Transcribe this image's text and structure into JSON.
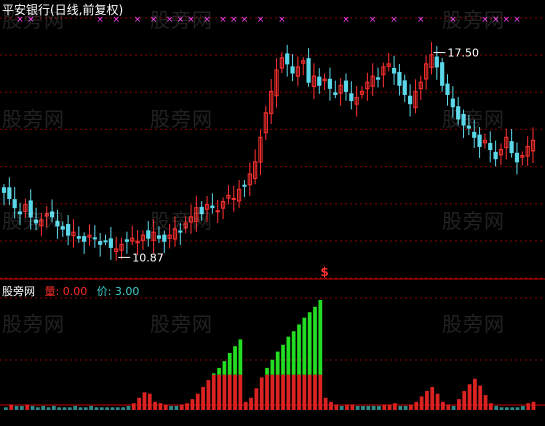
{
  "header": {
    "title": "平安银行(日线,前复权)"
  },
  "sub_panel": {
    "name": "股旁网",
    "vol_label": "量: 0.00",
    "price_label": "价: 3.00"
  },
  "watermark": "股旁网",
  "colors": {
    "background": "#000000",
    "up": "#ff3030",
    "down": "#5ad7e8",
    "grid": "#8b0000",
    "green": "#22dd22",
    "red": "#dd2222",
    "teal": "#2a8c8c",
    "marker": "#ff44ff"
  },
  "chart_data": [
    {
      "type": "candlestick",
      "annotations": [
        {
          "text": "17.50",
          "kind": "high"
        },
        {
          "text": "10.87",
          "kind": "low"
        },
        {
          "text": "$",
          "kind": "signal"
        }
      ],
      "price_range": [
        10.0,
        18.5
      ],
      "high": 17.5,
      "low": 10.87,
      "close": [
        12.8,
        12.6,
        12.3,
        12.1,
        12.4,
        12.0,
        11.8,
        11.9,
        12.1,
        12.0,
        11.7,
        11.6,
        11.4,
        11.5,
        11.3,
        11.2,
        11.4,
        11.3,
        11.1,
        11.2,
        11.0,
        10.95,
        11.1,
        11.2,
        11.3,
        11.2,
        11.4,
        11.3,
        11.5,
        11.3,
        11.2,
        11.4,
        11.6,
        11.5,
        11.8,
        12.0,
        12.3,
        12.1,
        12.4,
        12.3,
        12.2,
        12.5,
        12.7,
        12.6,
        12.9,
        13.0,
        13.4,
        13.8,
        14.6,
        15.4,
        16.1,
        16.8,
        17.2,
        17.0,
        16.7,
        16.9,
        17.1,
        16.4,
        16.6,
        16.3,
        16.5,
        16.2,
        16.0,
        16.3,
        16.1,
        15.8,
        15.9,
        16.1,
        16.4,
        16.6,
        16.5,
        16.9,
        17.0,
        16.7,
        16.3,
        16.0,
        15.7,
        16.1,
        16.4,
        17.0,
        17.3,
        16.9,
        16.3,
        16.0,
        15.6,
        15.2,
        15.0,
        14.9,
        14.6,
        14.3,
        14.5,
        14.2,
        13.9,
        14.2,
        14.6,
        14.1,
        13.8,
        14.0,
        14.3,
        14.5
      ]
    },
    {
      "type": "bar",
      "name": "股旁网",
      "values": [
        2,
        4,
        3,
        3,
        4,
        3,
        2,
        3,
        2,
        3,
        2,
        2,
        2,
        3,
        2,
        2,
        3,
        2,
        2,
        2,
        2,
        2,
        2,
        3,
        5,
        9,
        13,
        12,
        6,
        5,
        4,
        3,
        3,
        4,
        5,
        8,
        12,
        17,
        22,
        27,
        31,
        36,
        42,
        47,
        52,
        6,
        9,
        16,
        24,
        31,
        37,
        43,
        48,
        54,
        58,
        63,
        68,
        72,
        76,
        81,
        9,
        6,
        4,
        3,
        4,
        4,
        3,
        3,
        3,
        3,
        3,
        4,
        4,
        5,
        3,
        3,
        4,
        6,
        10,
        14,
        17,
        12,
        6,
        4,
        3,
        8,
        14,
        19,
        23,
        18,
        11,
        5,
        3,
        2,
        2,
        2,
        2,
        3,
        5,
        6
      ],
      "colors_key": [
        "green",
        "red",
        "teal"
      ]
    }
  ]
}
